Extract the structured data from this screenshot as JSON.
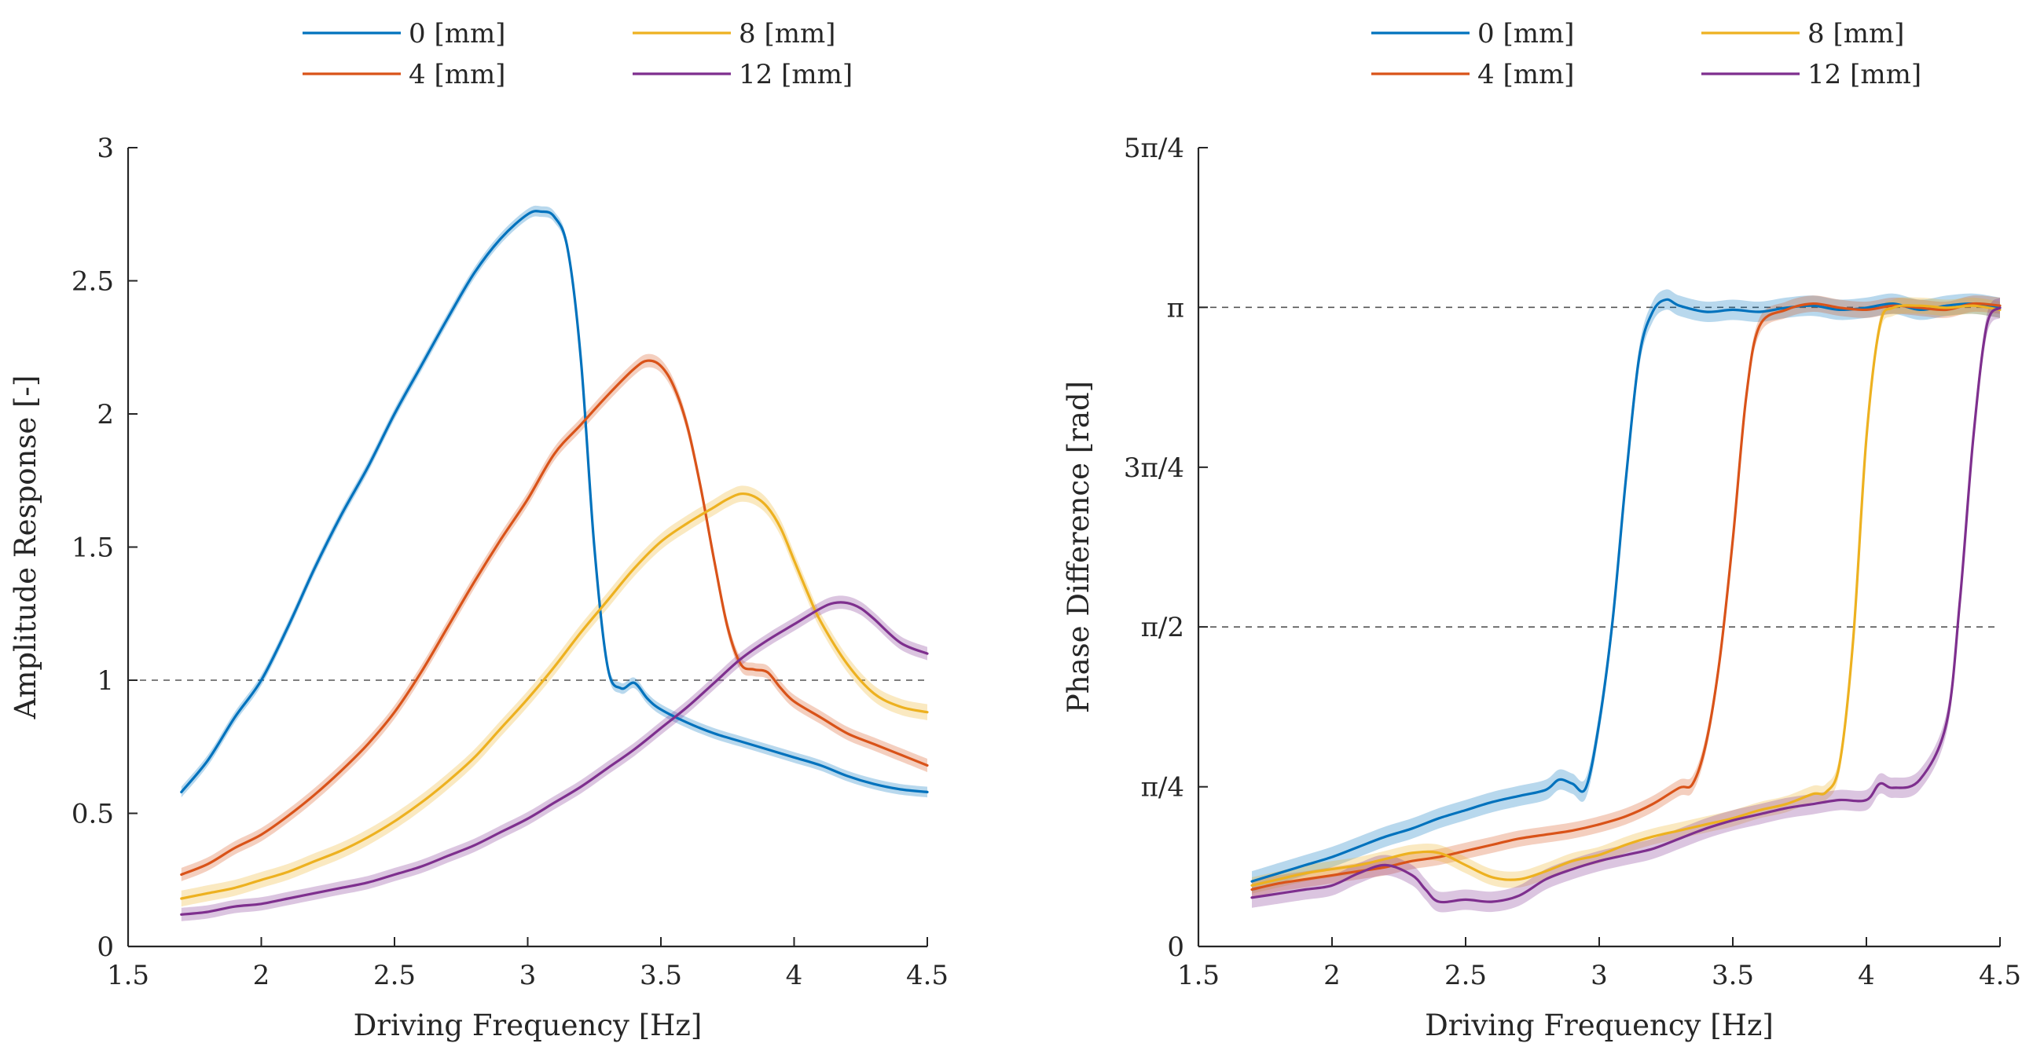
{
  "chart_data": [
    {
      "type": "line",
      "id": "amplitude",
      "xlabel": "Driving Frequency [Hz]",
      "ylabel": "Amplitude Response [-]",
      "xlim": [
        1.5,
        4.5
      ],
      "ylim": [
        0,
        3
      ],
      "xticks": [
        {
          "value": 1.5,
          "label": "1.5"
        },
        {
          "value": 2,
          "label": "2"
        },
        {
          "value": 2.5,
          "label": "2.5"
        },
        {
          "value": 3,
          "label": "3"
        },
        {
          "value": 3.5,
          "label": "3.5"
        },
        {
          "value": 4,
          "label": "4"
        },
        {
          "value": 4.5,
          "label": "4.5"
        }
      ],
      "yticks": [
        {
          "value": 0,
          "label": "0"
        },
        {
          "value": 0.5,
          "label": "0.5"
        },
        {
          "value": 1,
          "label": "1"
        },
        {
          "value": 1.5,
          "label": "1.5"
        },
        {
          "value": 2,
          "label": "2"
        },
        {
          "value": 2.5,
          "label": "2.5"
        },
        {
          "value": 3,
          "label": "3"
        }
      ],
      "reference_lines": [
        1
      ],
      "grid": false,
      "legend_position": "top-center",
      "series": [
        {
          "name": "0 [mm]",
          "color": "#0072BD",
          "band": 0.02,
          "x": [
            1.7,
            1.8,
            1.9,
            2.0,
            2.1,
            2.2,
            2.3,
            2.4,
            2.5,
            2.6,
            2.7,
            2.8,
            2.9,
            3.0,
            3.05,
            3.1,
            3.15,
            3.2,
            3.25,
            3.3,
            3.35,
            3.4,
            3.45,
            3.5,
            3.6,
            3.7,
            3.8,
            3.9,
            4.0,
            4.1,
            4.2,
            4.3,
            4.4,
            4.5
          ],
          "y": [
            0.58,
            0.7,
            0.86,
            1.0,
            1.2,
            1.42,
            1.62,
            1.8,
            2.0,
            2.18,
            2.36,
            2.53,
            2.66,
            2.75,
            2.76,
            2.74,
            2.62,
            2.2,
            1.5,
            1.05,
            0.97,
            0.99,
            0.93,
            0.89,
            0.84,
            0.8,
            0.77,
            0.74,
            0.71,
            0.68,
            0.64,
            0.61,
            0.59,
            0.58
          ]
        },
        {
          "name": "4 [mm]",
          "color": "#D95319",
          "band": 0.025,
          "x": [
            1.7,
            1.8,
            1.9,
            2.0,
            2.1,
            2.2,
            2.3,
            2.4,
            2.5,
            2.6,
            2.7,
            2.8,
            2.9,
            3.0,
            3.1,
            3.2,
            3.3,
            3.4,
            3.45,
            3.5,
            3.55,
            3.6,
            3.65,
            3.7,
            3.75,
            3.8,
            3.85,
            3.9,
            3.95,
            4.0,
            4.1,
            4.2,
            4.3,
            4.4,
            4.5
          ],
          "y": [
            0.27,
            0.31,
            0.37,
            0.42,
            0.49,
            0.57,
            0.66,
            0.76,
            0.88,
            1.03,
            1.2,
            1.37,
            1.53,
            1.68,
            1.85,
            1.96,
            2.07,
            2.17,
            2.2,
            2.18,
            2.1,
            1.95,
            1.72,
            1.45,
            1.2,
            1.06,
            1.04,
            1.03,
            0.97,
            0.92,
            0.86,
            0.8,
            0.76,
            0.72,
            0.68
          ]
        },
        {
          "name": "8 [mm]",
          "color": "#EDB120",
          "band": 0.03,
          "x": [
            1.7,
            1.8,
            1.9,
            2.0,
            2.1,
            2.2,
            2.3,
            2.4,
            2.5,
            2.6,
            2.7,
            2.8,
            2.9,
            3.0,
            3.1,
            3.2,
            3.3,
            3.4,
            3.5,
            3.6,
            3.7,
            3.75,
            3.8,
            3.85,
            3.9,
            3.95,
            4.0,
            4.05,
            4.1,
            4.2,
            4.3,
            4.4,
            4.5
          ],
          "y": [
            0.18,
            0.2,
            0.22,
            0.25,
            0.28,
            0.32,
            0.36,
            0.41,
            0.47,
            0.54,
            0.62,
            0.71,
            0.82,
            0.93,
            1.05,
            1.18,
            1.3,
            1.42,
            1.52,
            1.59,
            1.65,
            1.68,
            1.7,
            1.69,
            1.65,
            1.57,
            1.45,
            1.33,
            1.22,
            1.06,
            0.95,
            0.9,
            0.88
          ]
        },
        {
          "name": "12 [mm]",
          "color": "#7E2F8E",
          "band": 0.025,
          "x": [
            1.7,
            1.8,
            1.9,
            2.0,
            2.1,
            2.2,
            2.3,
            2.4,
            2.5,
            2.6,
            2.7,
            2.8,
            2.9,
            3.0,
            3.1,
            3.2,
            3.3,
            3.4,
            3.5,
            3.6,
            3.7,
            3.8,
            3.9,
            4.0,
            4.1,
            4.15,
            4.2,
            4.25,
            4.3,
            4.4,
            4.5
          ],
          "y": [
            0.12,
            0.13,
            0.15,
            0.16,
            0.18,
            0.2,
            0.22,
            0.24,
            0.27,
            0.3,
            0.34,
            0.38,
            0.43,
            0.48,
            0.54,
            0.6,
            0.67,
            0.74,
            0.82,
            0.9,
            0.99,
            1.08,
            1.15,
            1.21,
            1.27,
            1.29,
            1.29,
            1.27,
            1.23,
            1.14,
            1.1
          ]
        }
      ]
    },
    {
      "type": "line",
      "id": "phase",
      "xlabel": "Driving Frequency [Hz]",
      "ylabel": "Phase Difference [rad]",
      "xlim": [
        1.5,
        4.5
      ],
      "ylim": [
        0,
        3.927
      ],
      "xticks": [
        {
          "value": 1.5,
          "label": "1.5"
        },
        {
          "value": 2,
          "label": "2"
        },
        {
          "value": 2.5,
          "label": "2.5"
        },
        {
          "value": 3,
          "label": "3"
        },
        {
          "value": 3.5,
          "label": "3.5"
        },
        {
          "value": 4,
          "label": "4"
        },
        {
          "value": 4.5,
          "label": "4.5"
        }
      ],
      "yticks": [
        {
          "value": 0,
          "label": "0"
        },
        {
          "value": 0.785,
          "label": "π/4"
        },
        {
          "value": 1.571,
          "label": "π/2"
        },
        {
          "value": 2.356,
          "label": "3π/4"
        },
        {
          "value": 3.142,
          "label": "π"
        },
        {
          "value": 3.927,
          "label": "5π/4"
        }
      ],
      "reference_lines": [
        1.571,
        3.142
      ],
      "grid": false,
      "legend_position": "top-center",
      "series": [
        {
          "name": "0 [mm]",
          "color": "#0072BD",
          "band": 0.05,
          "x": [
            1.7,
            1.8,
            1.9,
            2.0,
            2.1,
            2.2,
            2.3,
            2.4,
            2.5,
            2.6,
            2.7,
            2.8,
            2.85,
            2.9,
            2.95,
            3.0,
            3.05,
            3.1,
            3.15,
            3.2,
            3.25,
            3.3,
            3.4,
            3.5,
            3.6,
            3.7,
            3.8,
            3.9,
            4.0,
            4.1,
            4.2,
            4.3,
            4.4,
            4.5
          ],
          "y": [
            0.32,
            0.36,
            0.4,
            0.44,
            0.49,
            0.54,
            0.58,
            0.63,
            0.67,
            0.71,
            0.74,
            0.77,
            0.82,
            0.8,
            0.78,
            1.1,
            1.6,
            2.3,
            2.9,
            3.12,
            3.18,
            3.15,
            3.12,
            3.13,
            3.12,
            3.14,
            3.15,
            3.13,
            3.14,
            3.16,
            3.13,
            3.15,
            3.16,
            3.14
          ]
        },
        {
          "name": "4 [mm]",
          "color": "#D95319",
          "band": 0.04,
          "x": [
            1.7,
            1.8,
            1.9,
            2.0,
            2.1,
            2.2,
            2.3,
            2.4,
            2.5,
            2.6,
            2.7,
            2.8,
            2.9,
            3.0,
            3.1,
            3.2,
            3.3,
            3.35,
            3.4,
            3.45,
            3.5,
            3.55,
            3.6,
            3.7,
            3.8,
            3.9,
            4.0,
            4.1,
            4.2,
            4.3,
            4.4,
            4.5
          ],
          "y": [
            0.28,
            0.31,
            0.33,
            0.35,
            0.37,
            0.39,
            0.42,
            0.44,
            0.47,
            0.5,
            0.53,
            0.55,
            0.57,
            0.6,
            0.64,
            0.7,
            0.78,
            0.8,
            1.0,
            1.4,
            2.0,
            2.7,
            3.05,
            3.13,
            3.16,
            3.14,
            3.13,
            3.15,
            3.14,
            3.13,
            3.16,
            3.15
          ]
        },
        {
          "name": "8 [mm]",
          "color": "#EDB120",
          "band": 0.04,
          "x": [
            1.7,
            1.8,
            1.9,
            2.0,
            2.1,
            2.2,
            2.3,
            2.4,
            2.5,
            2.6,
            2.7,
            2.8,
            2.9,
            3.0,
            3.1,
            3.2,
            3.3,
            3.4,
            3.5,
            3.6,
            3.7,
            3.8,
            3.85,
            3.9,
            3.95,
            4.0,
            4.05,
            4.1,
            4.2,
            4.3,
            4.4,
            4.5
          ],
          "y": [
            0.3,
            0.33,
            0.36,
            0.38,
            0.4,
            0.43,
            0.46,
            0.46,
            0.4,
            0.34,
            0.33,
            0.37,
            0.42,
            0.45,
            0.5,
            0.54,
            0.57,
            0.6,
            0.63,
            0.67,
            0.7,
            0.75,
            0.76,
            0.9,
            1.5,
            2.5,
            3.05,
            3.14,
            3.15,
            3.14,
            3.15,
            3.13
          ]
        },
        {
          "name": "12 [mm]",
          "color": "#7E2F8E",
          "band": 0.05,
          "x": [
            1.7,
            1.8,
            1.9,
            2.0,
            2.1,
            2.2,
            2.3,
            2.35,
            2.4,
            2.5,
            2.6,
            2.7,
            2.8,
            2.9,
            3.0,
            3.1,
            3.2,
            3.3,
            3.4,
            3.5,
            3.6,
            3.7,
            3.8,
            3.9,
            4.0,
            4.05,
            4.1,
            4.2,
            4.3,
            4.35,
            4.4,
            4.45,
            4.5
          ],
          "y": [
            0.24,
            0.26,
            0.28,
            0.3,
            0.36,
            0.4,
            0.35,
            0.28,
            0.22,
            0.23,
            0.22,
            0.25,
            0.33,
            0.38,
            0.42,
            0.45,
            0.48,
            0.53,
            0.58,
            0.62,
            0.65,
            0.68,
            0.7,
            0.72,
            0.72,
            0.8,
            0.78,
            0.82,
            1.1,
            1.7,
            2.5,
            3.05,
            3.14
          ]
        }
      ]
    }
  ]
}
